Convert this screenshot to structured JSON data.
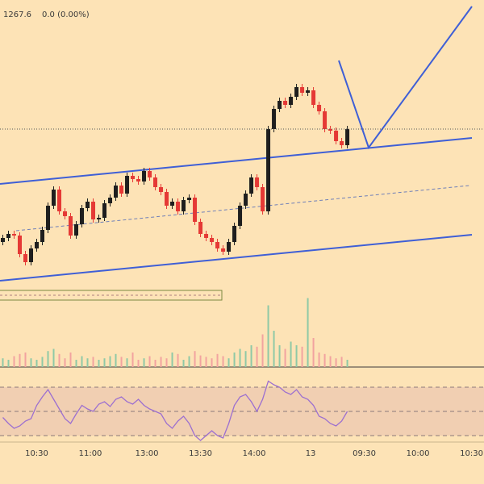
{
  "header": {
    "last": "1267.6",
    "change": "0.0 (0.00%)"
  },
  "chart_data": [
    {
      "type": "candlestick",
      "open": [
        1253.6,
        1254.1,
        1254.6,
        1254.4,
        1252.1,
        1251.1,
        1252.8,
        1253.6,
        1255.1,
        1258.1,
        1260.1,
        1257.4,
        1256.8,
        1254.4,
        1255.8,
        1257.8,
        1258.6,
        1256.4,
        1256.6,
        1258.4,
        1259.1,
        1260.6,
        1259.6,
        1261.8,
        1261.4,
        1261.1,
        1262.4,
        1261.6,
        1260.4,
        1259.8,
        1258.1,
        1258.6,
        1257.4,
        1258.8,
        1259.1,
        1256.1,
        1254.6,
        1254.1,
        1253.6,
        1252.8,
        1252.4,
        1253.6,
        1255.6,
        1258.1,
        1259.6,
        1261.6,
        1260.4,
        1257.4,
        1267.6,
        1270.1,
        1271.1,
        1270.6,
        1271.6,
        1272.8,
        1272.1,
        1272.4,
        1270.6,
        1269.8,
        1267.6,
        1267.4,
        1266.1,
        1265.6
      ],
      "high": [
        1254.5,
        1255.0,
        1255.0,
        1254.8,
        1252.5,
        1253.2,
        1254.0,
        1255.5,
        1258.5,
        1260.5,
        1260.5,
        1257.8,
        1257.2,
        1256.2,
        1258.2,
        1259.0,
        1259.0,
        1257.0,
        1258.8,
        1259.5,
        1261.0,
        1261.0,
        1262.2,
        1262.2,
        1261.8,
        1262.8,
        1262.8,
        1262.0,
        1260.8,
        1260.2,
        1259.0,
        1259.0,
        1259.2,
        1259.5,
        1259.5,
        1256.5,
        1255.0,
        1254.5,
        1254.0,
        1253.2,
        1254.0,
        1256.0,
        1258.5,
        1260.0,
        1262.0,
        1262.0,
        1260.8,
        1268.0,
        1270.5,
        1271.5,
        1271.5,
        1272.0,
        1273.2,
        1273.2,
        1272.8,
        1272.8,
        1271.0,
        1270.2,
        1268.0,
        1267.8,
        1266.5,
        1268.0
      ],
      "low": [
        1253.2,
        1253.7,
        1254.0,
        1251.7,
        1250.7,
        1250.7,
        1252.4,
        1253.2,
        1254.7,
        1257.7,
        1257.0,
        1256.4,
        1254.0,
        1254.0,
        1255.4,
        1257.4,
        1256.0,
        1256.0,
        1256.2,
        1258.0,
        1258.7,
        1259.2,
        1259.2,
        1261.0,
        1260.7,
        1260.7,
        1261.2,
        1260.0,
        1259.4,
        1257.7,
        1257.7,
        1257.0,
        1257.0,
        1258.4,
        1255.7,
        1254.2,
        1253.7,
        1253.2,
        1252.4,
        1252.0,
        1252.0,
        1253.2,
        1255.2,
        1257.7,
        1259.2,
        1260.0,
        1257.0,
        1257.0,
        1267.2,
        1269.7,
        1270.2,
        1270.2,
        1271.2,
        1271.7,
        1271.7,
        1270.2,
        1269.4,
        1267.2,
        1267.0,
        1265.7,
        1265.2,
        1265.2
      ],
      "close": [
        1254.1,
        1254.6,
        1254.4,
        1252.1,
        1251.1,
        1252.8,
        1253.6,
        1255.1,
        1258.1,
        1260.1,
        1257.4,
        1256.8,
        1254.4,
        1255.8,
        1257.8,
        1258.6,
        1256.4,
        1256.6,
        1258.4,
        1259.1,
        1260.6,
        1259.6,
        1261.8,
        1261.4,
        1261.1,
        1262.4,
        1261.6,
        1260.4,
        1259.8,
        1258.1,
        1258.6,
        1257.4,
        1258.8,
        1259.1,
        1256.1,
        1254.6,
        1254.1,
        1253.6,
        1252.8,
        1252.4,
        1253.6,
        1255.6,
        1258.1,
        1259.6,
        1261.6,
        1260.4,
        1257.4,
        1267.6,
        1270.1,
        1271.1,
        1270.6,
        1271.6,
        1272.8,
        1272.1,
        1272.4,
        1270.6,
        1269.8,
        1267.6,
        1267.4,
        1266.1,
        1265.6,
        1267.6
      ],
      "up_color": "#1e1e1e",
      "down_color": "#e53935",
      "ylim": [
        1238.1,
        1283.6
      ],
      "xlim": [
        -0.5,
        85.2
      ],
      "xticks": [
        {
          "value": 6,
          "label": "10:30"
        },
        {
          "value": 15.5,
          "label": "11:00"
        },
        {
          "value": 25.5,
          "label": "13:00"
        },
        {
          "value": 35,
          "label": "13:30"
        },
        {
          "value": 44.5,
          "label": "14:00"
        },
        {
          "value": 54.5,
          "label": "13"
        },
        {
          "value": 64,
          "label": "09:30"
        },
        {
          "value": 73.5,
          "label": "10:00"
        },
        {
          "value": 83,
          "label": "10:30"
        }
      ],
      "last_price_line": true
    },
    {
      "type": "bar",
      "values": [
        12,
        10,
        15,
        18,
        20,
        12,
        10,
        14,
        22,
        25,
        18,
        12,
        20,
        10,
        15,
        12,
        14,
        10,
        12,
        15,
        18,
        14,
        12,
        20,
        10,
        12,
        15,
        10,
        14,
        12,
        20,
        18,
        10,
        15,
        22,
        16,
        14,
        12,
        18,
        15,
        12,
        20,
        25,
        22,
        30,
        28,
        45,
        85,
        50,
        30,
        25,
        35,
        30,
        28,
        95,
        40,
        20,
        18,
        15,
        12,
        14,
        10
      ],
      "ylim": [
        0,
        100
      ],
      "up_color": "#8fc9a6",
      "down_color": "#f2a3a0"
    },
    {
      "type": "line",
      "values": [
        45,
        40,
        36,
        38,
        42,
        44,
        55,
        62,
        68,
        60,
        52,
        44,
        40,
        48,
        55,
        52,
        50,
        56,
        58,
        54,
        60,
        62,
        58,
        56,
        60,
        55,
        52,
        50,
        48,
        40,
        36,
        42,
        46,
        40,
        30,
        26,
        30,
        34,
        30,
        28,
        40,
        55,
        62,
        64,
        58,
        50,
        60,
        75,
        72,
        70,
        66,
        64,
        68,
        62,
        60,
        55,
        46,
        44,
        40,
        38,
        42,
        50
      ],
      "ylim": [
        25,
        81
      ],
      "levels": [
        30,
        50,
        70
      ],
      "color": "#9c6fd0",
      "band_color": "#f1cfb2"
    }
  ]
}
